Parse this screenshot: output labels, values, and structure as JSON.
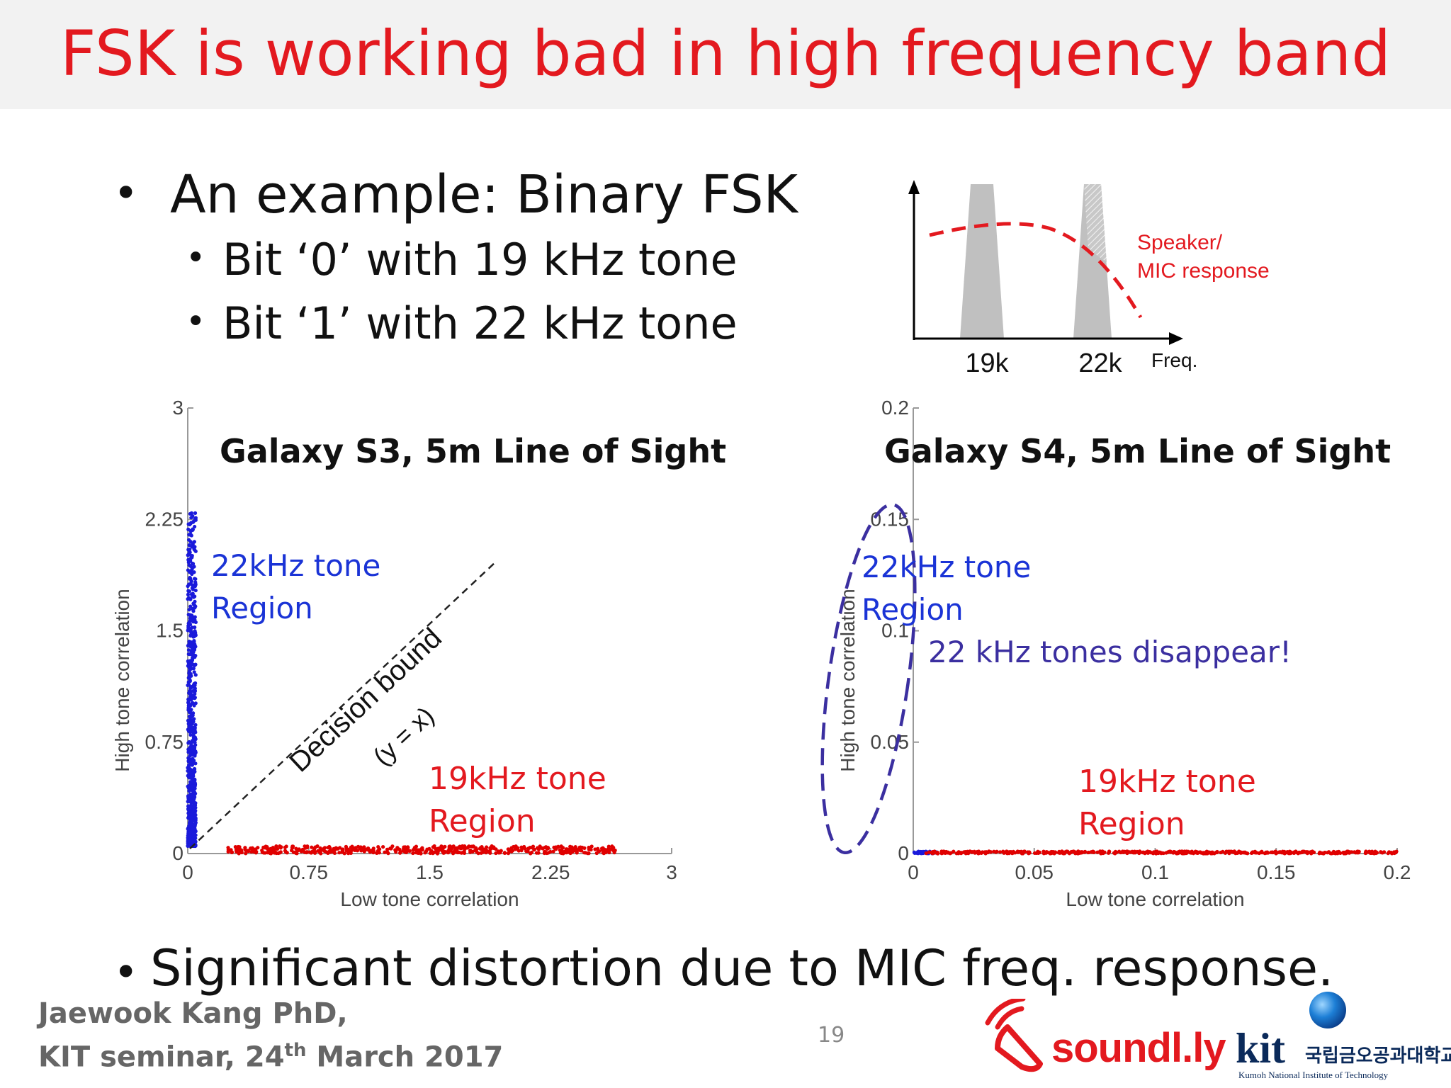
{
  "title": "FSK is working bad in high frequency band",
  "bullets": {
    "main": "An example: Binary FSK",
    "sub1": "Bit ‘0’ with 19 kHz tone",
    "sub2": "Bit ‘1’ with 22 kHz tone",
    "bottom": "Significant distortion due to MIC freq. response."
  },
  "response_diagram": {
    "curve_label_line1": "Speaker/",
    "curve_label_line2": "MIC response",
    "tick_19k": "19k",
    "tick_22k": "22k",
    "axis_label": "Freq."
  },
  "chart_data": [
    {
      "type": "scatter",
      "title": "Galaxy S3, 5m Line of Sight",
      "xlabel": "Low tone correlation",
      "ylabel": "High tone correlation",
      "xlim": [
        0,
        3
      ],
      "ylim": [
        0,
        3
      ],
      "xticks": [
        "0",
        "0.75",
        "1.5",
        "2.25",
        "3"
      ],
      "yticks": [
        "0",
        "0.75",
        "1.5",
        "2.25",
        "3"
      ],
      "series": [
        {
          "color": "#1a1adb",
          "x_range": [
            0,
            0.05
          ],
          "y_range": [
            0.05,
            2.3
          ]
        },
        {
          "color": "#e00000",
          "x_range": [
            0.25,
            2.65
          ],
          "y_range": [
            0,
            0.05
          ]
        }
      ],
      "annotations": {
        "high_region_1": "22kHz tone",
        "high_region_2": "Region",
        "low_region_1": "19kHz tone",
        "low_region_2": "Region",
        "bound_1": "Decision bound",
        "bound_2": "(y = x)"
      }
    },
    {
      "type": "scatter",
      "title": "Galaxy S4, 5m Line of Sight",
      "xlabel": "Low tone correlation",
      "ylabel": "High tone correlation",
      "xlim": [
        0,
        0.2
      ],
      "ylim": [
        0,
        0.2
      ],
      "xticks": [
        "0",
        "0.05",
        "0.1",
        "0.15",
        "0.2"
      ],
      "yticks": [
        "0",
        "0.05",
        "0.1",
        "0.15",
        "0.2"
      ],
      "series": [
        {
          "color": "#1a1adb",
          "x_range": [
            0,
            0.01
          ],
          "y_range": [
            0,
            0.001
          ]
        },
        {
          "color": "#e00000",
          "x_range": [
            0.005,
            0.2
          ],
          "y_range": [
            0,
            0.001
          ]
        }
      ],
      "annotations": {
        "high_region_1": "22kHz tone",
        "high_region_2": "Region",
        "low_region_1": "19kHz tone",
        "low_region_2": "Region",
        "note": "22 kHz tones disappear!"
      }
    }
  ],
  "footer": {
    "author": "Jaewook Kang PhD,",
    "event_prefix": "KIT seminar, 24",
    "event_sup": "th",
    "event_suffix": " March 2017",
    "page": "19"
  },
  "logos": {
    "soundly": "soundl.ly",
    "kit": "kit",
    "kit_korean": "국립금오공과대학교",
    "kit_english": "Kumoh National Institute of Technology"
  },
  "colors": {
    "title": "#e3191f",
    "blue": "#1a33d6",
    "red": "#e3191f",
    "purple": "#3b2fa0"
  }
}
